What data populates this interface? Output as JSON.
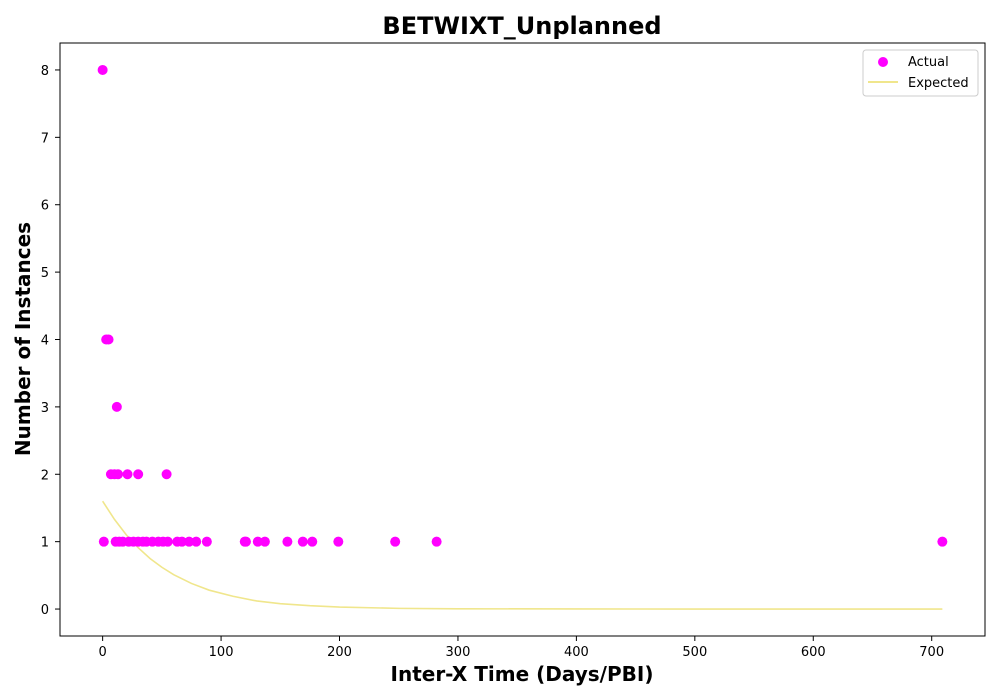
{
  "chart_data": {
    "type": "scatter",
    "title": "BETWIXT_Unplanned",
    "xlabel": "Inter-X Time (Days/PBI)",
    "ylabel": "Number of Instances",
    "xlim": [
      -36,
      745
    ],
    "ylim": [
      -0.4,
      8.4
    ],
    "xticks": [
      0,
      100,
      200,
      300,
      400,
      500,
      600,
      700
    ],
    "yticks": [
      0,
      1,
      2,
      3,
      4,
      5,
      6,
      7,
      8
    ],
    "grid": false,
    "legend_position": "top-right",
    "series": [
      {
        "name": "Actual",
        "kind": "scatter",
        "color": "#ff00ff",
        "points": [
          [
            0,
            8
          ],
          [
            1,
            1
          ],
          [
            3,
            4
          ],
          [
            5,
            4
          ],
          [
            7,
            2
          ],
          [
            10,
            2
          ],
          [
            11,
            1
          ],
          [
            12,
            3
          ],
          [
            13,
            2
          ],
          [
            14,
            1
          ],
          [
            17,
            1
          ],
          [
            21,
            2
          ],
          [
            22,
            1
          ],
          [
            26,
            1
          ],
          [
            30,
            2
          ],
          [
            30,
            1
          ],
          [
            34,
            1
          ],
          [
            37,
            1
          ],
          [
            42,
            1
          ],
          [
            47,
            1
          ],
          [
            51,
            1
          ],
          [
            54,
            2
          ],
          [
            55,
            1
          ],
          [
            63,
            1
          ],
          [
            67,
            1
          ],
          [
            73,
            1
          ],
          [
            79,
            1
          ],
          [
            88,
            1
          ],
          [
            120,
            1
          ],
          [
            121,
            1
          ],
          [
            131,
            1
          ],
          [
            137,
            1
          ],
          [
            156,
            1
          ],
          [
            169,
            1
          ],
          [
            177,
            1
          ],
          [
            199,
            1
          ],
          [
            247,
            1
          ],
          [
            282,
            1
          ],
          [
            709,
            1
          ]
        ]
      },
      {
        "name": "Expected",
        "kind": "line",
        "color": "#f0e68c",
        "points": [
          [
            0,
            1.6
          ],
          [
            10,
            1.33
          ],
          [
            20,
            1.1
          ],
          [
            30,
            0.91
          ],
          [
            40,
            0.75
          ],
          [
            50,
            0.62
          ],
          [
            60,
            0.51
          ],
          [
            75,
            0.38
          ],
          [
            90,
            0.28
          ],
          [
            110,
            0.19
          ],
          [
            130,
            0.12
          ],
          [
            150,
            0.08
          ],
          [
            175,
            0.05
          ],
          [
            200,
            0.03
          ],
          [
            250,
            0.01
          ],
          [
            300,
            0.004
          ],
          [
            400,
            0.001
          ],
          [
            500,
            0
          ],
          [
            600,
            0
          ],
          [
            709,
            0
          ]
        ]
      }
    ]
  }
}
